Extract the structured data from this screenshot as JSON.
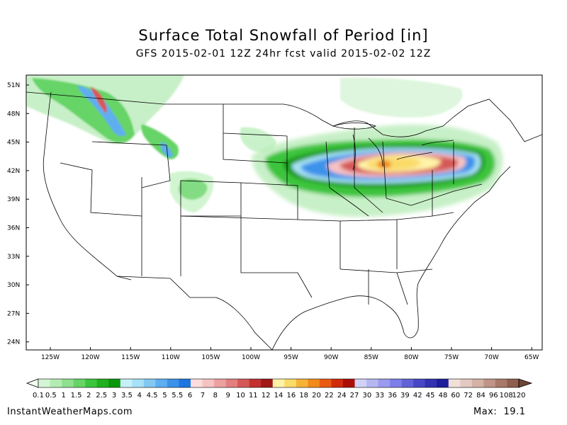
{
  "header": {
    "title": "Surface Total Snowfall of Period [in]",
    "subtitle": "GFS 2015-02-01 12Z 24hr fcst valid 2015-02-02 12Z"
  },
  "footer": {
    "credit": "InstantWeatherMaps.com",
    "max_label": "Max:",
    "max_value": "19.1"
  },
  "axes": {
    "lat_labels": [
      "51N",
      "48N",
      "45N",
      "42N",
      "39N",
      "36N",
      "33N",
      "30N",
      "27N",
      "24N"
    ],
    "lon_labels": [
      "125W",
      "120W",
      "115W",
      "110W",
      "105W",
      "100W",
      "95W",
      "90W",
      "85W",
      "80W",
      "75W",
      "70W",
      "65W"
    ]
  },
  "legend": {
    "labels": [
      "0.1",
      "0.5",
      "1",
      "1.5",
      "2",
      "2.5",
      "3",
      "3.5",
      "4",
      "4.5",
      "5",
      "5.5",
      "6",
      "7",
      "8",
      "9",
      "10",
      "11",
      "12",
      "14",
      "16",
      "18",
      "20",
      "22",
      "24",
      "27",
      "30",
      "33",
      "36",
      "39",
      "42",
      "45",
      "48",
      "60",
      "72",
      "84",
      "96",
      "108",
      "120"
    ],
    "colors": [
      "#d5f5d5",
      "#b3ecb3",
      "#8fe08f",
      "#66d466",
      "#3dc43d",
      "#20b020",
      "#0a960a",
      "#c8f0f8",
      "#a6e2f6",
      "#82c8f2",
      "#5eaef0",
      "#3c92ea",
      "#1f76e0",
      "#fcdcdc",
      "#f7c2c2",
      "#eda0a0",
      "#e27f7f",
      "#d65858",
      "#c23030",
      "#a01818",
      "#fff3a8",
      "#fadb6a",
      "#f6b436",
      "#f28a1e",
      "#ea5a12",
      "#d22a0c",
      "#aa0e06",
      "#d2d2f8",
      "#b6b6f2",
      "#9a9aee",
      "#7e7ee8",
      "#6262d8",
      "#4848c6",
      "#3232b2",
      "#1e1e9a",
      "#f0e0d8",
      "#e2cac0",
      "#d4b2a6",
      "#c09486",
      "#a87868",
      "#8e5e4e"
    ]
  }
}
